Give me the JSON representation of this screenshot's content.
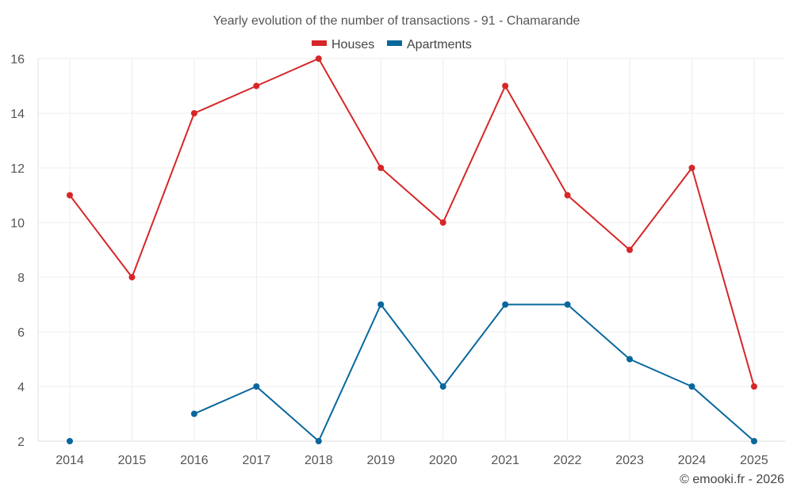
{
  "chart_data": {
    "type": "line",
    "title": "Yearly evolution of the number of transactions - 91 - Chamarande",
    "categories": [
      "2014",
      "2015",
      "2016",
      "2017",
      "2018",
      "2019",
      "2020",
      "2021",
      "2022",
      "2023",
      "2024",
      "2025"
    ],
    "series": [
      {
        "name": "Houses",
        "color": "#d62728",
        "values": [
          11,
          8,
          14,
          15,
          16,
          12,
          10,
          15,
          11,
          9,
          12,
          4
        ]
      },
      {
        "name": "Apartments",
        "color": "#08679c",
        "values": [
          2,
          null,
          3,
          4,
          2,
          7,
          4,
          7,
          7,
          5,
          4,
          2
        ]
      }
    ],
    "ylim": [
      2,
      16
    ],
    "yticks": [
      2,
      4,
      6,
      8,
      10,
      12,
      14,
      16
    ],
    "xlabel": "",
    "ylabel": "",
    "grid": true,
    "legend": "top-center"
  },
  "credit": "© emooki.fr - 2026"
}
